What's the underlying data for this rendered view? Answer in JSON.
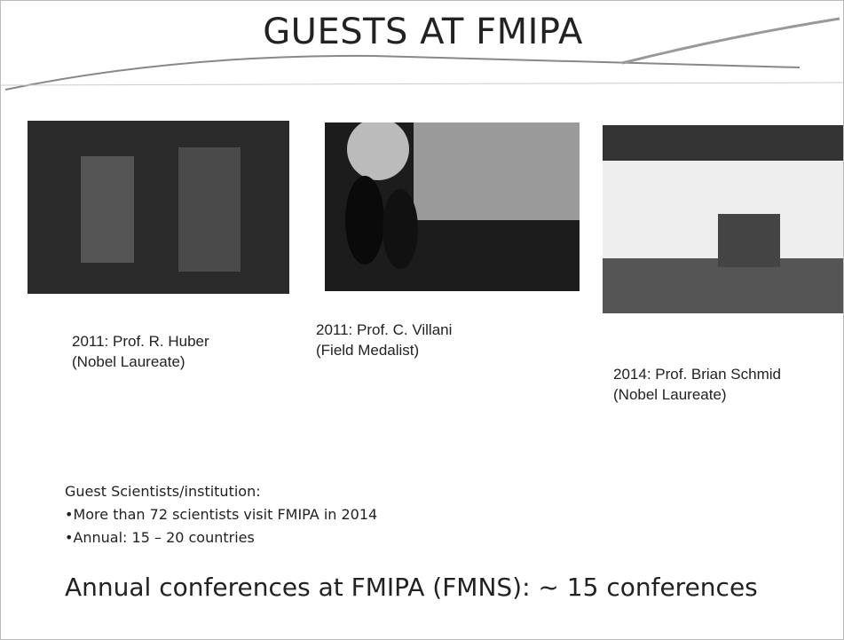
{
  "header": {
    "title": "GUESTS AT FMIPA"
  },
  "photos": [
    {
      "caption": [
        "2011: Prof. R. Huber",
        "(Nobel Laureate)"
      ]
    },
    {
      "caption": [
        "2011: Prof. C. Villani",
        "(Field Medalist)"
      ]
    },
    {
      "caption": [
        "2014: Prof. Brian Schmid",
        "(Nobel Laureate)"
      ]
    }
  ],
  "details": {
    "heading": "Guest Scientists/institution:",
    "bullets": [
      "•More than 72 scientists visit FMIPA in 2014",
      "•Annual: 15 – 20 countries"
    ]
  },
  "footer": {
    "text": "Annual conferences at FMIPA (FMNS):  ~ 15 conferences"
  }
}
